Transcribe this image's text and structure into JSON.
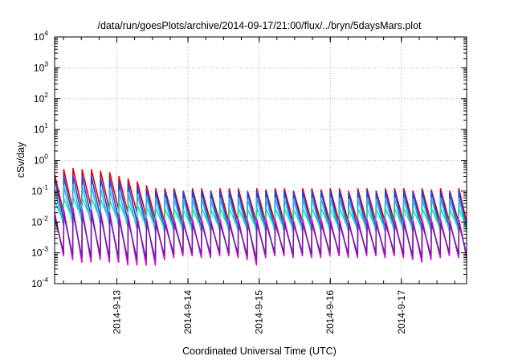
{
  "chart_data": {
    "type": "line",
    "title": "/data/run/goesPlots/archive/2014-09-17/21:00/flux/../bryn/5daysMars.plot",
    "xlabel": "Coordinated Universal Time (UTC)",
    "ylabel": "cSv/day",
    "yscale": "log",
    "ylim": [
      0.0001,
      10000
    ],
    "y_ticks": [
      {
        "base": "10",
        "exp": "-4",
        "value": 0.0001
      },
      {
        "base": "10",
        "exp": "-3",
        "value": 0.001
      },
      {
        "base": "10",
        "exp": "-2",
        "value": 0.01
      },
      {
        "base": "10",
        "exp": "-1",
        "value": 0.1
      },
      {
        "base": "10",
        "exp": "0",
        "value": 1
      },
      {
        "base": "10",
        "exp": "1",
        "value": 10
      },
      {
        "base": "10",
        "exp": "2",
        "value": 100
      },
      {
        "base": "10",
        "exp": "3",
        "value": 1000
      },
      {
        "base": "10",
        "exp": "4",
        "value": 10000
      }
    ],
    "xlim": [
      "2014-09-12 03:00",
      "2014-09-17 22:00"
    ],
    "x_ticks": [
      "2014-9-13",
      "2014-9-14",
      "2014-9-15",
      "2014-9-16",
      "2014-9-17"
    ],
    "grid": true,
    "legend": "none",
    "sawtooth_period_hours": 3.1,
    "series": [
      {
        "color": "#e00000",
        "peaks": [
          0.35,
          0.5,
          0.55,
          0.5,
          0.5,
          0.45,
          0.4,
          0.3,
          0.25,
          0.2,
          0.15,
          0.12,
          0.12,
          0.12,
          0.1,
          0.12,
          0.12,
          0.1,
          0.12,
          0.12,
          0.12,
          0.1,
          0.12,
          0.11,
          0.12,
          0.12,
          0.1,
          0.12,
          0.12,
          0.11,
          0.12,
          0.12,
          0.1,
          0.12,
          0.12,
          0.1,
          0.12,
          0.12,
          0.12,
          0.1,
          0.12,
          0.11,
          0.12,
          0.1,
          0.12
        ],
        "troughs": [
          0.02,
          0.025,
          0.03,
          0.03,
          0.03,
          0.025,
          0.025,
          0.02,
          0.02,
          0.015,
          0.012,
          0.01,
          0.01,
          0.01,
          0.01,
          0.01,
          0.01,
          0.01,
          0.01,
          0.01,
          0.01,
          0.01,
          0.01,
          0.01,
          0.01,
          0.01,
          0.01,
          0.01,
          0.01,
          0.01,
          0.01,
          0.01,
          0.01,
          0.01,
          0.01,
          0.01,
          0.01,
          0.01,
          0.01,
          0.01,
          0.01,
          0.01,
          0.01,
          0.01,
          0.01
        ]
      },
      {
        "color": "#1f3fe0",
        "peaks": [
          0.25,
          0.3,
          0.32,
          0.3,
          0.3,
          0.27,
          0.25,
          0.2,
          0.17,
          0.14,
          0.11,
          0.1,
          0.1,
          0.1,
          0.09,
          0.1,
          0.1,
          0.09,
          0.1,
          0.1,
          0.1,
          0.09,
          0.1,
          0.1,
          0.1,
          0.1,
          0.09,
          0.1,
          0.1,
          0.1,
          0.1,
          0.1,
          0.09,
          0.1,
          0.1,
          0.09,
          0.1,
          0.1,
          0.1,
          0.09,
          0.1,
          0.1,
          0.1,
          0.09,
          0.1
        ],
        "troughs": [
          0.012,
          0.015,
          0.016,
          0.015,
          0.015,
          0.013,
          0.012,
          0.011,
          0.01,
          0.008,
          0.007,
          0.006,
          0.006,
          0.006,
          0.006,
          0.006,
          0.006,
          0.006,
          0.006,
          0.006,
          0.006,
          0.006,
          0.006,
          0.006,
          0.006,
          0.006,
          0.006,
          0.006,
          0.006,
          0.006,
          0.006,
          0.006,
          0.006,
          0.006,
          0.006,
          0.006,
          0.006,
          0.006,
          0.006,
          0.006,
          0.006,
          0.006,
          0.006,
          0.006,
          0.006
        ]
      },
      {
        "color": "#2fb0e8",
        "peaks": [
          0.12,
          0.15,
          0.16,
          0.15,
          0.15,
          0.13,
          0.12,
          0.1,
          0.09,
          0.08,
          0.07,
          0.06,
          0.06,
          0.06,
          0.055,
          0.06,
          0.06,
          0.055,
          0.06,
          0.06,
          0.06,
          0.055,
          0.06,
          0.06,
          0.06,
          0.06,
          0.055,
          0.06,
          0.06,
          0.06,
          0.06,
          0.06,
          0.055,
          0.06,
          0.06,
          0.055,
          0.06,
          0.06,
          0.06,
          0.055,
          0.06,
          0.06,
          0.06,
          0.055,
          0.06
        ],
        "troughs": [
          0.008,
          0.009,
          0.01,
          0.009,
          0.009,
          0.008,
          0.008,
          0.007,
          0.006,
          0.006,
          0.005,
          0.005,
          0.005,
          0.005,
          0.005,
          0.005,
          0.005,
          0.005,
          0.005,
          0.005,
          0.005,
          0.005,
          0.005,
          0.005,
          0.005,
          0.005,
          0.005,
          0.005,
          0.005,
          0.005,
          0.005,
          0.005,
          0.005,
          0.005,
          0.005,
          0.005,
          0.005,
          0.005,
          0.005,
          0.005,
          0.005,
          0.005,
          0.005,
          0.005,
          0.005
        ]
      },
      {
        "color": "#20d8c0",
        "peaks": [
          0.05,
          0.06,
          0.065,
          0.06,
          0.06,
          0.055,
          0.05,
          0.045,
          0.04,
          0.035,
          0.03,
          0.028,
          0.028,
          0.028,
          0.026,
          0.028,
          0.028,
          0.026,
          0.028,
          0.028,
          0.028,
          0.026,
          0.028,
          0.028,
          0.028,
          0.028,
          0.026,
          0.028,
          0.028,
          0.028,
          0.028,
          0.028,
          0.026,
          0.028,
          0.028,
          0.026,
          0.028,
          0.028,
          0.028,
          0.026,
          0.028,
          0.028,
          0.028,
          0.026,
          0.028
        ],
        "troughs": [
          0.01,
          0.012,
          0.013,
          0.012,
          0.012,
          0.011,
          0.01,
          0.009,
          0.008,
          0.007,
          0.007,
          0.006,
          0.006,
          0.006,
          0.006,
          0.006,
          0.006,
          0.006,
          0.006,
          0.006,
          0.006,
          0.006,
          0.006,
          0.006,
          0.006,
          0.006,
          0.006,
          0.006,
          0.006,
          0.006,
          0.006,
          0.006,
          0.006,
          0.006,
          0.006,
          0.006,
          0.006,
          0.006,
          0.006,
          0.006,
          0.006,
          0.006,
          0.006,
          0.006,
          0.006
        ]
      },
      {
        "color": "#e000e0",
        "peaks": [
          0.02,
          0.025,
          0.028,
          0.025,
          0.025,
          0.022,
          0.02,
          0.018,
          0.016,
          0.014,
          0.013,
          0.012,
          0.012,
          0.012,
          0.011,
          0.012,
          0.012,
          0.011,
          0.012,
          0.012,
          0.012,
          0.011,
          0.012,
          0.012,
          0.012,
          0.012,
          0.011,
          0.012,
          0.012,
          0.012,
          0.012,
          0.012,
          0.011,
          0.012,
          0.012,
          0.011,
          0.012,
          0.012,
          0.012,
          0.011,
          0.012,
          0.012,
          0.012,
          0.011,
          0.012
        ],
        "troughs": [
          0.0008,
          0.0006,
          0.0005,
          0.0005,
          0.0006,
          0.0005,
          0.0005,
          0.0004,
          0.0004,
          0.0004,
          0.0004,
          0.0006,
          0.0007,
          0.0008,
          0.0008,
          0.0007,
          0.0007,
          0.0008,
          0.0008,
          0.0007,
          0.0006,
          0.0004,
          0.0007,
          0.0008,
          0.0008,
          0.0007,
          0.0008,
          0.0007,
          0.0007,
          0.0008,
          0.0008,
          0.0007,
          0.0007,
          0.0008,
          0.0008,
          0.0007,
          0.0008,
          0.0007,
          0.0006,
          0.0005,
          0.0006,
          0.0007,
          0.0008,
          0.0007,
          0.0007
        ]
      },
      {
        "color": "#7020a0",
        "peaks": [
          0.015,
          0.018,
          0.02,
          0.018,
          0.018,
          0.016,
          0.015,
          0.013,
          0.012,
          0.011,
          0.01,
          0.009,
          0.009,
          0.009,
          0.009,
          0.009,
          0.009,
          0.009,
          0.009,
          0.009,
          0.009,
          0.009,
          0.009,
          0.009,
          0.009,
          0.009,
          0.009,
          0.009,
          0.009,
          0.009,
          0.009,
          0.009,
          0.009,
          0.009,
          0.009,
          0.009,
          0.009,
          0.009,
          0.009,
          0.009,
          0.009,
          0.009,
          0.009,
          0.009,
          0.009
        ],
        "troughs": [
          0.001,
          0.0008,
          0.0007,
          0.0007,
          0.0008,
          0.0007,
          0.0007,
          0.0006,
          0.0006,
          0.0006,
          0.0006,
          0.0008,
          0.0009,
          0.001,
          0.001,
          0.0009,
          0.0009,
          0.001,
          0.001,
          0.0009,
          0.0008,
          0.0006,
          0.0009,
          0.001,
          0.001,
          0.0009,
          0.001,
          0.0009,
          0.0009,
          0.001,
          0.001,
          0.0009,
          0.0009,
          0.001,
          0.001,
          0.0009,
          0.001,
          0.0009,
          0.0008,
          0.0007,
          0.0008,
          0.0009,
          0.001,
          0.0009,
          0.0009
        ]
      }
    ]
  }
}
